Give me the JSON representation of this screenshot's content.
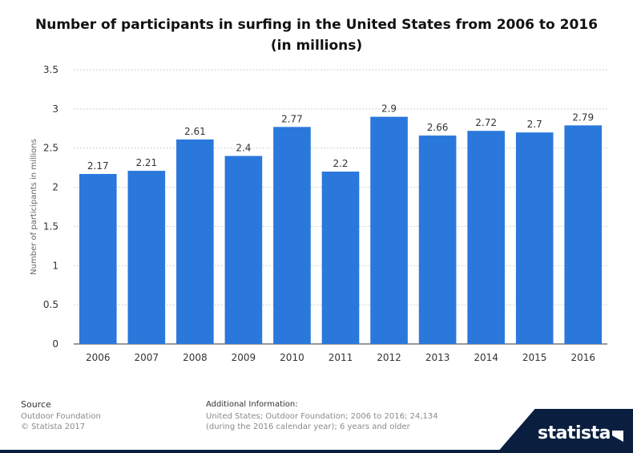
{
  "title": "Number of participants in surfing in the United States from 2006 to 2016 (in millions)",
  "chart_data": {
    "type": "bar",
    "categories": [
      "2006",
      "2007",
      "2008",
      "2009",
      "2010",
      "2011",
      "2012",
      "2013",
      "2014",
      "2015",
      "2016"
    ],
    "values": [
      2.17,
      2.21,
      2.61,
      2.4,
      2.77,
      2.2,
      2.9,
      2.66,
      2.72,
      2.7,
      2.79
    ],
    "value_labels": [
      "2.17",
      "2.21",
      "2.61",
      "2.4",
      "2.77",
      "2.2",
      "2.9",
      "2.66",
      "2.72",
      "2.7",
      "2.79"
    ],
    "ylabel": "Number of participants in millions",
    "ylim": [
      0,
      3.5
    ],
    "yticks": [
      "0",
      "0.5",
      "1",
      "1.5",
      "2",
      "2.5",
      "3",
      "3.5"
    ],
    "grid": true,
    "bar_color": "#2a78dc"
  },
  "footer": {
    "source_heading": "Source",
    "source_line1": "Outdoor Foundation",
    "source_line2": "© Statista 2017",
    "info_heading": "Additional Information:",
    "info_line1": "United States; Outdoor Foundation; 2006 to 2016; 24,134",
    "info_line2": "(during the 2016 calendar year); 6 years and older"
  },
  "brand": {
    "name": "statista"
  }
}
